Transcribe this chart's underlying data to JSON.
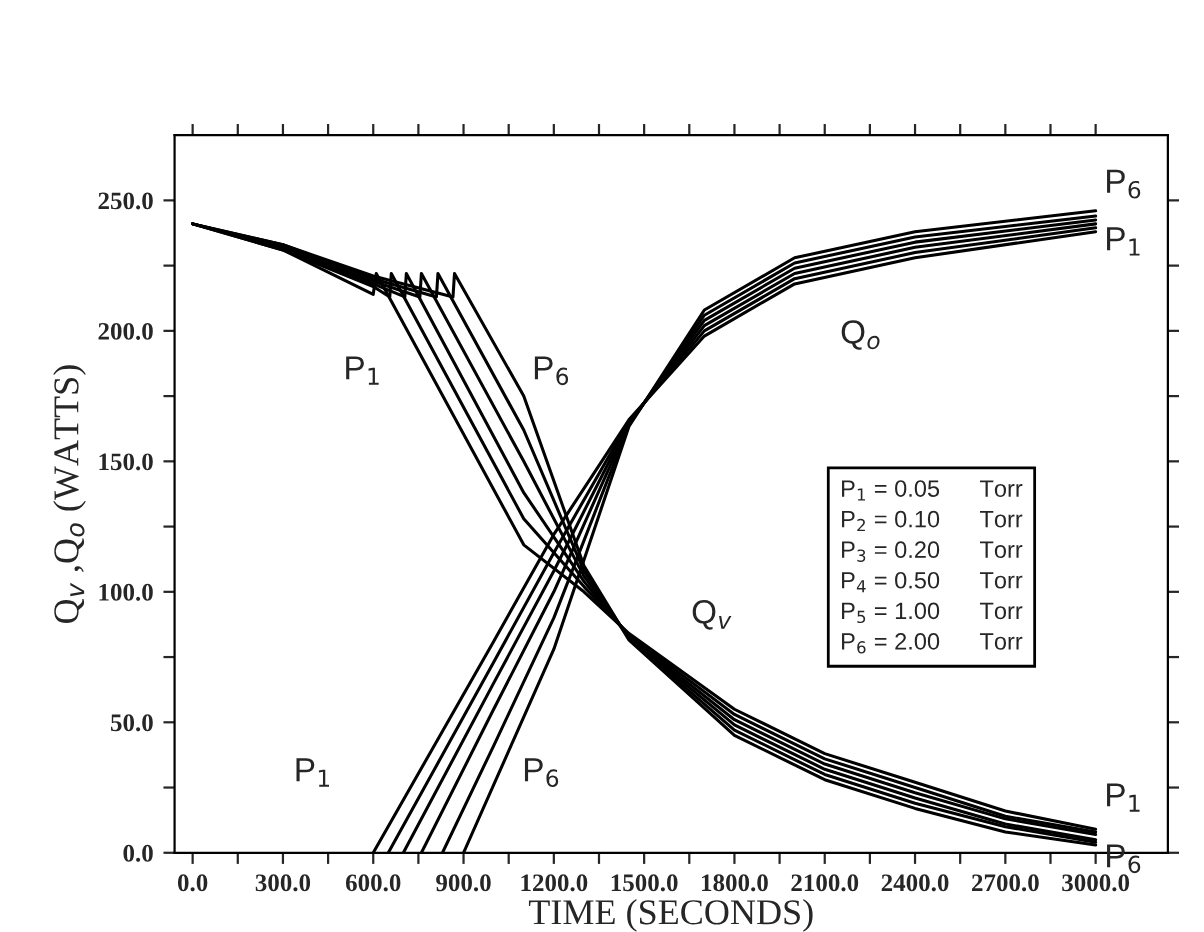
{
  "chart_data": {
    "type": "line",
    "xlabel": "TIME (SECONDS)",
    "ylabel": "Q$_{v}$ ,Q$_{o}$ (WATTS)",
    "xlim": [
      -60,
      3240
    ],
    "ylim": [
      0,
      275
    ],
    "xticks": [
      {
        "value": 0,
        "label": "0.0"
      },
      {
        "value": 150,
        "label": null
      },
      {
        "value": 300,
        "label": "300.0"
      },
      {
        "value": 450,
        "label": null
      },
      {
        "value": 600,
        "label": "600.0"
      },
      {
        "value": 750,
        "label": null
      },
      {
        "value": 900,
        "label": "900.0"
      },
      {
        "value": 1050,
        "label": null
      },
      {
        "value": 1200,
        "label": "1200.0"
      },
      {
        "value": 1350,
        "label": null
      },
      {
        "value": 1500,
        "label": "1500.0"
      },
      {
        "value": 1650,
        "label": null
      },
      {
        "value": 1800,
        "label": "1800.0"
      },
      {
        "value": 1950,
        "label": null
      },
      {
        "value": 2100,
        "label": "2100.0"
      },
      {
        "value": 2250,
        "label": null
      },
      {
        "value": 2400,
        "label": "2400.0"
      },
      {
        "value": 2550,
        "label": null
      },
      {
        "value": 2700,
        "label": "2700.0"
      },
      {
        "value": 2850,
        "label": null
      },
      {
        "value": 3000,
        "label": "3000.0"
      }
    ],
    "yticks": [
      {
        "value": 0,
        "label": "0.0"
      },
      {
        "value": 25,
        "label": null
      },
      {
        "value": 50,
        "label": "50.0"
      },
      {
        "value": 75,
        "label": null
      },
      {
        "value": 100,
        "label": "100.0"
      },
      {
        "value": 125,
        "label": null
      },
      {
        "value": 150,
        "label": "150.0"
      },
      {
        "value": 175,
        "label": null
      },
      {
        "value": 200,
        "label": "200.0"
      },
      {
        "value": 225,
        "label": null
      },
      {
        "value": 250,
        "label": "250.0"
      }
    ],
    "grid": false,
    "marker": "none",
    "line_style": "solid",
    "series": [
      {
        "color": "#000000",
        "x": [
          0,
          300,
          600,
          610,
          1100,
          1300,
          1450,
          1800,
          2100,
          2400,
          2700,
          3000
        ],
        "values": [
          241,
          231,
          214,
          222,
          118,
          100,
          84,
          55,
          38,
          27,
          16,
          9
        ]
      },
      {
        "color": "#000000",
        "x": [
          0,
          300,
          600,
          655,
          660,
          1100,
          1300,
          1450,
          1800,
          2100,
          2400,
          2700,
          3000
        ],
        "values": [
          241,
          231,
          217,
          213,
          222,
          128,
          102,
          83.5,
          53,
          36,
          25,
          14,
          8
        ]
      },
      {
        "color": "#000000",
        "x": [
          0,
          300,
          600,
          705,
          710,
          1100,
          1300,
          1450,
          1800,
          2100,
          2400,
          2700,
          3000
        ],
        "values": [
          241,
          232,
          218,
          213,
          222,
          138,
          104,
          83,
          51,
          34,
          23,
          13,
          7
        ]
      },
      {
        "color": "#000000",
        "x": [
          0,
          300,
          600,
          755,
          760,
          1100,
          1300,
          1450,
          1800,
          2100,
          2400,
          2700,
          3000
        ],
        "values": [
          241,
          232,
          219,
          213,
          222,
          150,
          106,
          82.5,
          49,
          32,
          21,
          11,
          5
        ]
      },
      {
        "color": "#000000",
        "x": [
          0,
          300,
          600,
          810,
          815,
          1100,
          1300,
          1450,
          1800,
          2100,
          2400,
          2700,
          3000
        ],
        "values": [
          241,
          233,
          220,
          213,
          222,
          162,
          108,
          82,
          47,
          30,
          19,
          10,
          4
        ]
      },
      {
        "color": "#000000",
        "x": [
          0,
          300,
          600,
          865,
          870,
          1100,
          1300,
          1450,
          1800,
          2100,
          2400,
          2700,
          3000
        ],
        "values": [
          241,
          233,
          221,
          213,
          222,
          175,
          110,
          81.5,
          45,
          28,
          17,
          8,
          3
        ]
      },
      {
        "color": "#000000",
        "x": [
          600,
          1000,
          1200,
          1450,
          1700,
          2000,
          2400,
          3000
        ],
        "values": [
          0,
          81,
          122,
          166,
          198,
          218,
          228,
          238
        ]
      },
      {
        "color": "#000000",
        "x": [
          650,
          1000,
          1200,
          1450,
          1700,
          2000,
          2400,
          3000
        ],
        "values": [
          0,
          73,
          115,
          165.5,
          200,
          220,
          230,
          239.5
        ]
      },
      {
        "color": "#000000",
        "x": [
          700,
          1000,
          1200,
          1450,
          1700,
          2000,
          2400,
          3000
        ],
        "values": [
          0,
          65,
          108,
          165,
          202,
          222,
          232,
          241
        ]
      },
      {
        "color": "#000000",
        "x": [
          760,
          1000,
          1200,
          1450,
          1700,
          2000,
          2400,
          3000
        ],
        "values": [
          0,
          55,
          100,
          164.5,
          204,
          224,
          234,
          242.5
        ]
      },
      {
        "color": "#000000",
        "x": [
          830,
          1000,
          1200,
          1450,
          1700,
          2000,
          2400,
          3000
        ],
        "values": [
          0,
          41,
          90,
          164,
          206,
          226,
          236,
          244
        ]
      },
      {
        "color": "#000000",
        "x": [
          900,
          1000,
          1200,
          1450,
          1700,
          2000,
          2400,
          3000
        ],
        "values": [
          0,
          26,
          78,
          163.5,
          208,
          228,
          238,
          246
        ]
      }
    ],
    "annotations": [
      "P$_{1}$",
      "P$_{6}$",
      "P$_{1}$",
      "P$_{6}$",
      "Q$_{o}$",
      "Q$_{v}$",
      "P$_{6}$",
      "P$_{1}$",
      "P$_{1}$",
      "P$_{6}$",
      "P$_{1}$ = 0.05      Torr\nP$_{2}$ = 0.10      Torr\nP$_{3}$ = 0.20      Torr\nP$_{4}$ = 0.50      Torr\nP$_{5}$ = 1.00      Torr\nP$_{6}$ = 2.00      Torr"
    ]
  }
}
